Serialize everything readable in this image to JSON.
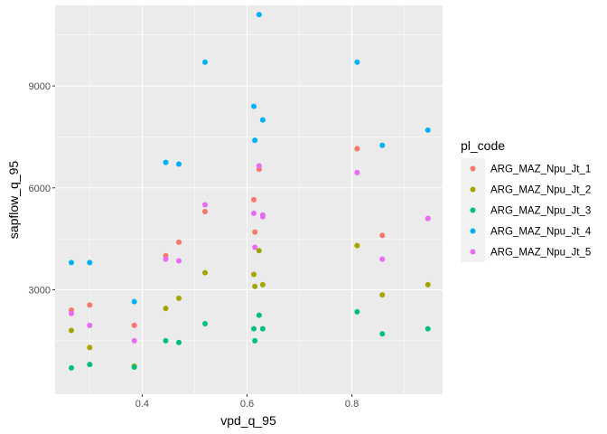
{
  "chart_data": {
    "type": "scatter",
    "title": "",
    "xlabel": "vpd_q_95",
    "ylabel": "sapflow_q_95",
    "xlim": [
      0.234,
      0.973
    ],
    "ylim": [
      -75,
      11370
    ],
    "x_ticks": [
      0.3,
      0.4,
      0.5,
      0.6,
      0.7,
      0.8,
      0.9
    ],
    "x_tick_labels": [
      "0.4",
      "0.6",
      "0.8"
    ],
    "x_tick_label_values": [
      0.4,
      0.6,
      0.8
    ],
    "y_ticks": [
      1500,
      3000,
      4500,
      6000,
      7500,
      9000,
      10500
    ],
    "y_tick_labels": [
      "3000",
      "6000",
      "9000"
    ],
    "y_tick_label_values": [
      3000,
      6000,
      9000
    ],
    "grid": true,
    "legend": {
      "title": "pl_code",
      "placement": "right"
    },
    "series": [
      {
        "name": "ARG_MAZ_Npu_Jt_1",
        "color": "#F8766D",
        "points": [
          [
            0.265,
            2400
          ],
          [
            0.3,
            2550
          ],
          [
            0.385,
            1950
          ],
          [
            0.445,
            4000
          ],
          [
            0.47,
            4400
          ],
          [
            0.52,
            5300
          ],
          [
            0.613,
            5650
          ],
          [
            0.615,
            4700
          ],
          [
            0.623,
            6550
          ],
          [
            0.81,
            7150
          ],
          [
            0.858,
            4600
          ],
          [
            0.945,
            5100
          ]
        ]
      },
      {
        "name": "ARG_MAZ_Npu_Jt_2",
        "color": "#A3A500",
        "points": [
          [
            0.265,
            1800
          ],
          [
            0.3,
            1300
          ],
          [
            0.385,
            750
          ],
          [
            0.445,
            2450
          ],
          [
            0.47,
            2750
          ],
          [
            0.52,
            3500
          ],
          [
            0.613,
            3450
          ],
          [
            0.615,
            3100
          ],
          [
            0.623,
            4150
          ],
          [
            0.63,
            3150
          ],
          [
            0.81,
            4300
          ],
          [
            0.858,
            2850
          ],
          [
            0.945,
            3150
          ]
        ]
      },
      {
        "name": "ARG_MAZ_Npu_Jt_3",
        "color": "#00BF7D",
        "points": [
          [
            0.265,
            700
          ],
          [
            0.3,
            800
          ],
          [
            0.385,
            720
          ],
          [
            0.445,
            1500
          ],
          [
            0.47,
            1450
          ],
          [
            0.52,
            2000
          ],
          [
            0.613,
            1850
          ],
          [
            0.615,
            1500
          ],
          [
            0.623,
            2250
          ],
          [
            0.63,
            1850
          ],
          [
            0.81,
            2350
          ],
          [
            0.858,
            1700
          ],
          [
            0.945,
            1850
          ]
        ]
      },
      {
        "name": "ARG_MAZ_Npu_Jt_4",
        "color": "#00B0F6",
        "points": [
          [
            0.265,
            3800
          ],
          [
            0.3,
            3800
          ],
          [
            0.385,
            2650
          ],
          [
            0.445,
            6750
          ],
          [
            0.47,
            6700
          ],
          [
            0.52,
            9700
          ],
          [
            0.613,
            8400
          ],
          [
            0.615,
            7400
          ],
          [
            0.623,
            11100
          ],
          [
            0.63,
            8000
          ],
          [
            0.81,
            9700
          ],
          [
            0.858,
            7250
          ],
          [
            0.945,
            7700
          ]
        ]
      },
      {
        "name": "ARG_MAZ_Npu_Jt_5",
        "color": "#E76BF3",
        "points": [
          [
            0.265,
            2300
          ],
          [
            0.3,
            1950
          ],
          [
            0.385,
            1500
          ],
          [
            0.445,
            3900
          ],
          [
            0.47,
            3850
          ],
          [
            0.52,
            5500
          ],
          [
            0.613,
            5250
          ],
          [
            0.615,
            4250
          ],
          [
            0.623,
            6650
          ],
          [
            0.63,
            5200
          ],
          [
            0.63,
            5150
          ],
          [
            0.81,
            6450
          ],
          [
            0.858,
            3900
          ],
          [
            0.945,
            5100
          ]
        ]
      }
    ]
  }
}
